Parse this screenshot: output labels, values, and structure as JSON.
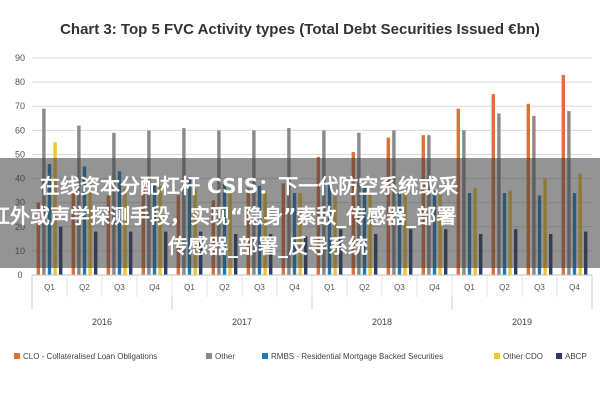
{
  "chart_data": {
    "type": "bar",
    "title": "Chart 3: Top 5 FVC Activity types (Total Debt Securities Issued €bn)",
    "ylim": [
      0,
      90
    ],
    "yticks": [
      0,
      10,
      20,
      30,
      40,
      50,
      60,
      70,
      80,
      90
    ],
    "grid": true,
    "legend_position": "bottom",
    "years": [
      {
        "label": "2016",
        "quarters": [
          "Q1",
          "Q2",
          "Q3",
          "Q4"
        ]
      },
      {
        "label": "2017",
        "quarters": [
          "Q1",
          "Q2",
          "Q3",
          "Q4"
        ]
      },
      {
        "label": "2018",
        "quarters": [
          "Q1",
          "Q2",
          "Q3",
          "Q4"
        ]
      },
      {
        "label": "2019",
        "quarters": [
          "Q1",
          "Q2",
          "Q3",
          "Q4"
        ]
      }
    ],
    "series": [
      {
        "name": "CLO - Collateralised Loan Obligations",
        "color": "#e0703a",
        "values": [
          30,
          34,
          33,
          37,
          33,
          31,
          36,
          38,
          49,
          51,
          57,
          58,
          69,
          75,
          71,
          83
        ]
      },
      {
        "name": "Other",
        "color": "#8a8a8a",
        "values": [
          69,
          62,
          59,
          60,
          61,
          60,
          60,
          61,
          60,
          59,
          60,
          58,
          60,
          67,
          66,
          68
        ]
      },
      {
        "name": "RMBS - Residential Mortgage Backed Securities",
        "color": "#1f7ab8",
        "values": [
          46,
          45,
          43,
          38,
          40,
          38,
          37,
          34,
          38,
          37,
          34,
          35,
          34,
          34,
          33,
          34
        ]
      },
      {
        "name": "Other CDO",
        "color": "#f4c430",
        "values": [
          55,
          38,
          36,
          37,
          36,
          35,
          34,
          34,
          33,
          34,
          35,
          34,
          36,
          35,
          40,
          42
        ]
      },
      {
        "name": "ABCP",
        "color": "#2a3c6b",
        "values": [
          20,
          18,
          18,
          18,
          18,
          17,
          17,
          16,
          19,
          17,
          19,
          19,
          17,
          19,
          17,
          18
        ]
      }
    ]
  },
  "overlay": {
    "line1": "在线资本分配杠杆 CSIS：下一代防空系统或采",
    "line2": "红外或声学探测手段，实现“隐身”索敌_传感器_部署",
    "line3": "传感器_部署_反导系统"
  }
}
